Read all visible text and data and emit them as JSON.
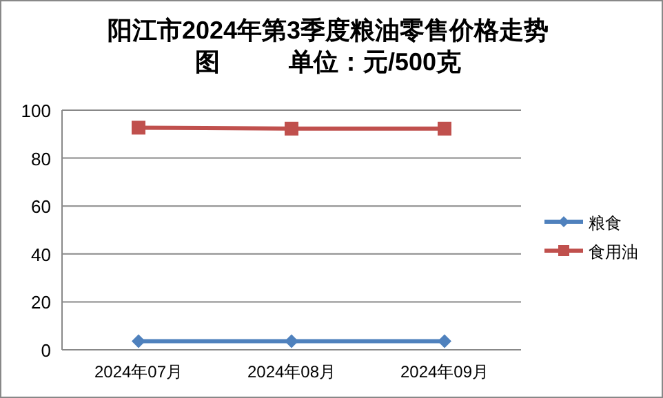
{
  "chart_data": {
    "type": "line",
    "title": "阳江市2024年第3季度粮油零售价格走势图          单位：元/500克",
    "categories": [
      "2024年07月",
      "2024年08月",
      "2024年09月"
    ],
    "series": [
      {
        "name": "粮食",
        "color": "#4f81bd",
        "values": [
          3.6,
          3.6,
          3.6
        ],
        "marker": "diamond"
      },
      {
        "name": "食用油",
        "color": "#c0504d",
        "values": [
          92.7,
          92.3,
          92.3
        ],
        "marker": "square"
      }
    ],
    "ylim": [
      0,
      100
    ],
    "yticks": [
      0,
      20,
      40,
      60,
      80,
      100
    ],
    "grid": "y",
    "legend": "right",
    "line_style": "solid"
  }
}
